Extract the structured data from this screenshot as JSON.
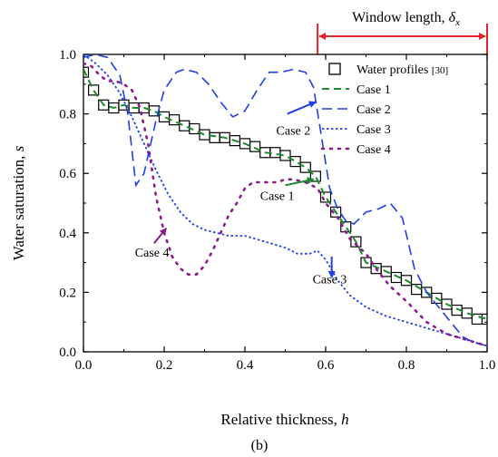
{
  "caption": "(b)",
  "chart_data": {
    "type": "line",
    "xlabel": "Relative thickness, ",
    "xlabel_var": "h",
    "ylabel": "Water saturation, ",
    "ylabel_var": "s",
    "xlim": [
      0.0,
      1.0
    ],
    "ylim": [
      0.0,
      1.0
    ],
    "x_ticks": [
      "0.0",
      "0.2",
      "0.4",
      "0.6",
      "0.8",
      "1.0"
    ],
    "y_ticks": [
      "0.0",
      "0.2",
      "0.4",
      "0.6",
      "0.8",
      "1.0"
    ],
    "legend_position": "top-right",
    "window": {
      "label": "Window length, ",
      "symbol": "δ",
      "subscript": "x",
      "x_start": 0.58,
      "x_end": 1.0,
      "color": "#e8232b"
    },
    "annotations": [
      {
        "text": "Case 2",
        "text_x": 0.52,
        "text_y": 0.73,
        "arrow_from": [
          0.505,
          0.8
        ],
        "arrow_to": [
          0.575,
          0.84
        ],
        "color": "#1f3ee8"
      },
      {
        "text": "Case 1",
        "text_x": 0.48,
        "text_y": 0.51,
        "arrow_from": [
          0.5,
          0.56
        ],
        "arrow_to": [
          0.57,
          0.58
        ],
        "color": "#1a8a2a"
      },
      {
        "text": "Case 4",
        "text_x": 0.17,
        "text_y": 0.32,
        "arrow_from": [
          0.175,
          0.365
        ],
        "arrow_to": [
          0.205,
          0.415
        ],
        "color": "#8b1a8b"
      },
      {
        "text": "Case 3",
        "text_x": 0.61,
        "text_y": 0.23,
        "arrow_from": [
          0.615,
          0.32
        ],
        "arrow_to": [
          0.615,
          0.25
        ],
        "color": "#1f3ee8"
      }
    ],
    "series": [
      {
        "name": "Water profiles [30]",
        "style": "marker",
        "color": "#000000",
        "x": [
          0.0,
          0.025,
          0.05,
          0.075,
          0.1,
          0.125,
          0.15,
          0.175,
          0.2,
          0.225,
          0.25,
          0.275,
          0.3,
          0.325,
          0.35,
          0.375,
          0.4,
          0.425,
          0.45,
          0.475,
          0.5,
          0.525,
          0.55,
          0.575,
          0.6,
          0.625,
          0.65,
          0.675,
          0.7,
          0.725,
          0.75,
          0.775,
          0.8,
          0.825,
          0.85,
          0.875,
          0.9,
          0.925,
          0.95,
          0.975,
          1.0
        ],
        "y": [
          0.94,
          0.88,
          0.83,
          0.82,
          0.83,
          0.82,
          0.82,
          0.81,
          0.79,
          0.78,
          0.76,
          0.75,
          0.73,
          0.72,
          0.72,
          0.71,
          0.7,
          0.69,
          0.67,
          0.67,
          0.66,
          0.64,
          0.62,
          0.59,
          0.52,
          0.47,
          0.42,
          0.37,
          0.3,
          0.28,
          0.27,
          0.25,
          0.24,
          0.21,
          0.2,
          0.18,
          0.16,
          0.14,
          0.13,
          0.11,
          0.11
        ]
      },
      {
        "name": "Case 1",
        "style": "dash",
        "color": "#1a8a2a",
        "x": [
          0.0,
          0.025,
          0.05,
          0.075,
          0.1,
          0.125,
          0.15,
          0.175,
          0.2,
          0.25,
          0.3,
          0.35,
          0.4,
          0.45,
          0.5,
          0.55,
          0.575,
          0.6,
          0.625,
          0.65,
          0.675,
          0.7,
          0.75,
          0.8,
          0.85,
          0.9,
          0.95,
          1.0
        ],
        "y": [
          0.95,
          0.88,
          0.83,
          0.82,
          0.83,
          0.82,
          0.82,
          0.81,
          0.79,
          0.76,
          0.73,
          0.72,
          0.7,
          0.67,
          0.66,
          0.62,
          0.59,
          0.52,
          0.47,
          0.42,
          0.37,
          0.3,
          0.27,
          0.24,
          0.2,
          0.16,
          0.13,
          0.11
        ]
      },
      {
        "name": "Case 2",
        "style": "longdash",
        "color": "#1f3ee8",
        "x": [
          0.0,
          0.03,
          0.06,
          0.09,
          0.11,
          0.13,
          0.15,
          0.18,
          0.2,
          0.23,
          0.25,
          0.28,
          0.31,
          0.34,
          0.37,
          0.4,
          0.43,
          0.46,
          0.49,
          0.52,
          0.55,
          0.57,
          0.59,
          0.61,
          0.63,
          0.65,
          0.67,
          0.7,
          0.73,
          0.76,
          0.79,
          0.82,
          0.85,
          0.88,
          0.91,
          0.94,
          0.97,
          1.0
        ],
        "y": [
          0.99,
          1.0,
          0.99,
          0.93,
          0.8,
          0.56,
          0.6,
          0.78,
          0.88,
          0.94,
          0.95,
          0.94,
          0.9,
          0.84,
          0.79,
          0.81,
          0.88,
          0.94,
          0.94,
          0.95,
          0.94,
          0.89,
          0.72,
          0.55,
          0.48,
          0.44,
          0.43,
          0.47,
          0.48,
          0.5,
          0.45,
          0.28,
          0.2,
          0.15,
          0.1,
          0.05,
          0.03,
          0.02
        ]
      },
      {
        "name": "Case 3",
        "style": "dot",
        "color": "#1f3ee8",
        "x": [
          0.0,
          0.03,
          0.06,
          0.09,
          0.12,
          0.15,
          0.18,
          0.21,
          0.24,
          0.27,
          0.3,
          0.33,
          0.36,
          0.4,
          0.45,
          0.5,
          0.53,
          0.56,
          0.58,
          0.6,
          0.63,
          0.66,
          0.7,
          0.75,
          0.8,
          0.85,
          0.9,
          0.95,
          1.0
        ],
        "y": [
          1.0,
          0.97,
          0.93,
          0.87,
          0.79,
          0.7,
          0.61,
          0.53,
          0.47,
          0.43,
          0.41,
          0.4,
          0.39,
          0.39,
          0.37,
          0.35,
          0.33,
          0.33,
          0.34,
          0.31,
          0.24,
          0.19,
          0.15,
          0.12,
          0.1,
          0.08,
          0.06,
          0.04,
          0.02
        ]
      },
      {
        "name": "Case 4",
        "style": "sparsedot",
        "color": "#8b1a8b",
        "x": [
          0.0,
          0.02,
          0.04,
          0.06,
          0.08,
          0.1,
          0.12,
          0.14,
          0.16,
          0.18,
          0.2,
          0.22,
          0.24,
          0.26,
          0.28,
          0.3,
          0.32,
          0.34,
          0.36,
          0.38,
          0.4,
          0.42,
          0.44,
          0.46,
          0.48,
          0.5,
          0.52,
          0.55,
          0.58,
          0.6,
          0.63,
          0.66,
          0.7,
          0.73,
          0.76,
          0.8,
          0.85,
          0.9,
          0.95,
          1.0
        ],
        "y": [
          0.97,
          0.96,
          0.93,
          0.91,
          0.91,
          0.9,
          0.88,
          0.82,
          0.7,
          0.52,
          0.4,
          0.32,
          0.28,
          0.26,
          0.26,
          0.29,
          0.34,
          0.4,
          0.46,
          0.5,
          0.55,
          0.57,
          0.57,
          0.57,
          0.57,
          0.58,
          0.58,
          0.57,
          0.55,
          0.5,
          0.45,
          0.38,
          0.33,
          0.27,
          0.22,
          0.17,
          0.1,
          0.06,
          0.04,
          0.02
        ]
      }
    ]
  }
}
